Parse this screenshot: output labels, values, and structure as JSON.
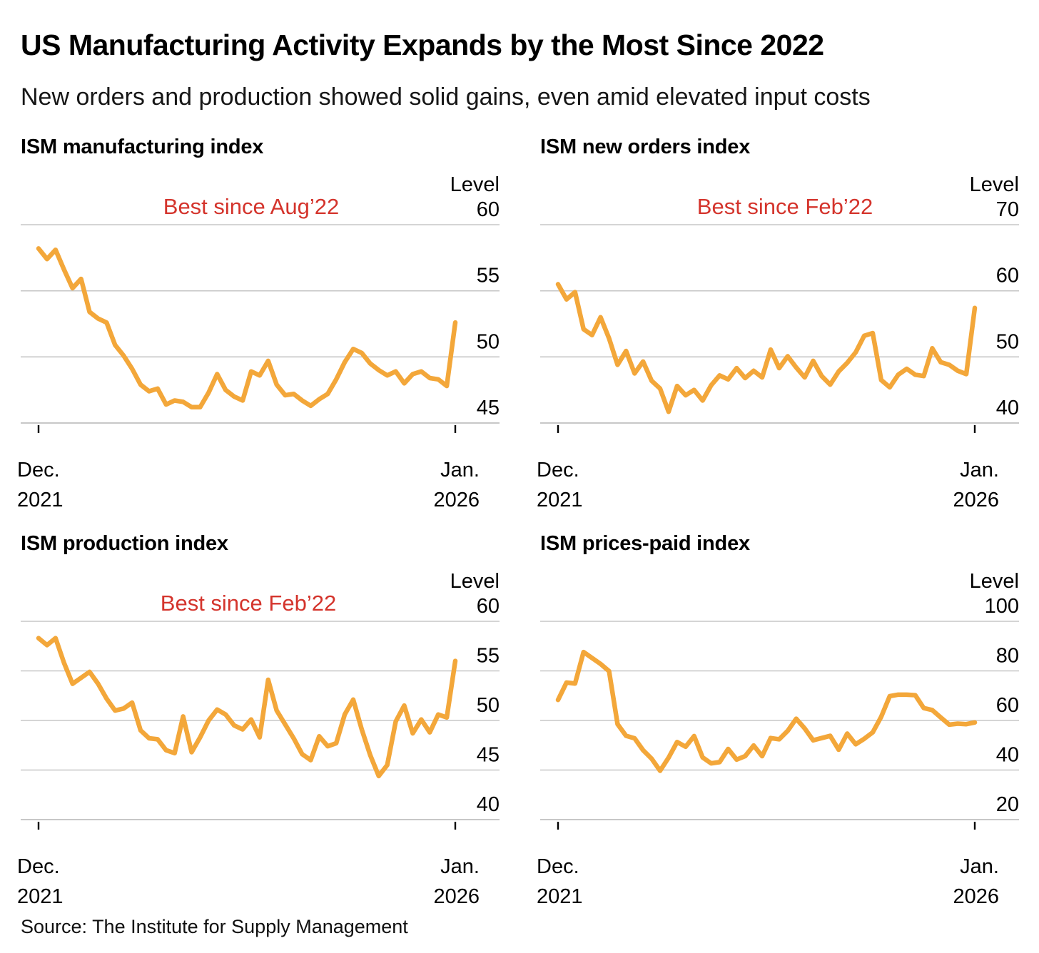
{
  "header": {
    "title": "US Manufacturing Activity Expands by the Most Since 2022",
    "subtitle": "New orders and production showed solid gains, even amid elevated input costs"
  },
  "source": "Source: The Institute for Supply Management",
  "colors": {
    "line": "#f3a73a",
    "annotation": "#d4342c",
    "gridline": "#c7c7c7",
    "tick": "#000000",
    "text": "#000000"
  },
  "chart_data": [
    {
      "type": "line",
      "title": "ISM manufacturing index",
      "annotation": "Best since Aug’22",
      "axis_label": "Level",
      "x_start": [
        "Dec.",
        "2021"
      ],
      "x_end": [
        "Jan.",
        "2026"
      ],
      "x_frequency": "monthly",
      "ylim": [
        45,
        60
      ],
      "y_gridlines": [
        60,
        55,
        50,
        45
      ],
      "grid": true,
      "legend": "none",
      "values": [
        58.2,
        57.4,
        58.1,
        56.6,
        55.2,
        55.9,
        53.4,
        52.9,
        52.6,
        50.9,
        50.1,
        49.1,
        47.9,
        47.4,
        47.6,
        46.4,
        46.7,
        46.6,
        46.2,
        46.2,
        47.3,
        48.7,
        47.5,
        47.0,
        46.7,
        48.9,
        48.6,
        49.7,
        47.9,
        47.1,
        47.2,
        46.7,
        46.3,
        46.8,
        47.2,
        48.3,
        49.6,
        50.6,
        50.3,
        49.5,
        49.0,
        48.6,
        48.9,
        48.0,
        48.7,
        48.9,
        48.4,
        48.3,
        47.8,
        52.6
      ]
    },
    {
      "type": "line",
      "title": "ISM new orders index",
      "annotation": "Best since Feb’22",
      "axis_label": "Level",
      "x_start": [
        "Dec.",
        "2021"
      ],
      "x_end": [
        "Jan.",
        "2026"
      ],
      "x_frequency": "monthly",
      "ylim": [
        40,
        70
      ],
      "y_gridlines": [
        70,
        60,
        50,
        40
      ],
      "grid": true,
      "legend": "none",
      "values": [
        61.0,
        58.7,
        59.8,
        54.2,
        53.3,
        56.0,
        52.8,
        48.8,
        50.9,
        47.5,
        49.3,
        46.4,
        45.2,
        41.7,
        45.6,
        44.2,
        45.0,
        43.4,
        45.7,
        47.2,
        46.6,
        48.3,
        46.8,
        47.9,
        46.9,
        51.1,
        48.3,
        50.1,
        48.4,
        46.9,
        49.4,
        47.1,
        45.8,
        47.8,
        49.1,
        50.7,
        53.2,
        53.6,
        46.5,
        45.4,
        47.3,
        48.2,
        47.3,
        47.1,
        51.3,
        49.2,
        48.8,
        47.9,
        47.4,
        57.4
      ]
    },
    {
      "type": "line",
      "title": "ISM production index",
      "annotation": "Best since Feb’22",
      "axis_label": "Level",
      "x_start": [
        "Dec.",
        "2021"
      ],
      "x_end": [
        "Jan.",
        "2026"
      ],
      "x_frequency": "monthly",
      "ylim": [
        40,
        60
      ],
      "y_gridlines": [
        60,
        55,
        50,
        45,
        40
      ],
      "grid": true,
      "legend": "none",
      "values": [
        58.3,
        57.6,
        58.3,
        55.8,
        53.7,
        54.3,
        54.9,
        53.7,
        52.2,
        51.0,
        51.2,
        51.8,
        49.0,
        48.2,
        48.1,
        47.0,
        46.7,
        50.4,
        46.8,
        48.3,
        50.0,
        51.1,
        50.6,
        49.5,
        49.1,
        50.1,
        48.3,
        54.1,
        51.0,
        49.6,
        48.2,
        46.6,
        46.0,
        48.4,
        47.4,
        47.7,
        50.6,
        52.1,
        49.1,
        46.5,
        44.4,
        45.5,
        49.9,
        51.5,
        48.7,
        50.1,
        48.8,
        50.6,
        50.3,
        56.0
      ]
    },
    {
      "type": "line",
      "title": "ISM prices-paid index",
      "annotation": "",
      "axis_label": "Level",
      "x_start": [
        "Dec.",
        "2021"
      ],
      "x_end": [
        "Jan.",
        "2026"
      ],
      "x_frequency": "monthly",
      "ylim": [
        20,
        100
      ],
      "y_gridlines": [
        100,
        80,
        60,
        40,
        20
      ],
      "grid": true,
      "legend": "none",
      "values": [
        68.3,
        75.3,
        74.9,
        87.6,
        85.2,
        82.8,
        79.9,
        58.5,
        53.8,
        52.8,
        48.0,
        44.6,
        39.7,
        45.0,
        51.3,
        49.4,
        53.7,
        45.1,
        42.7,
        43.2,
        48.5,
        44.2,
        45.6,
        49.9,
        45.6,
        52.9,
        52.4,
        55.8,
        60.7,
        56.8,
        52.0,
        52.9,
        53.8,
        48.2,
        54.7,
        50.4,
        52.6,
        55.2,
        61.5,
        69.8,
        70.4,
        70.4,
        70.2,
        65.0,
        64.2,
        61.2,
        58.3,
        58.7,
        58.5,
        59.2
      ]
    }
  ]
}
